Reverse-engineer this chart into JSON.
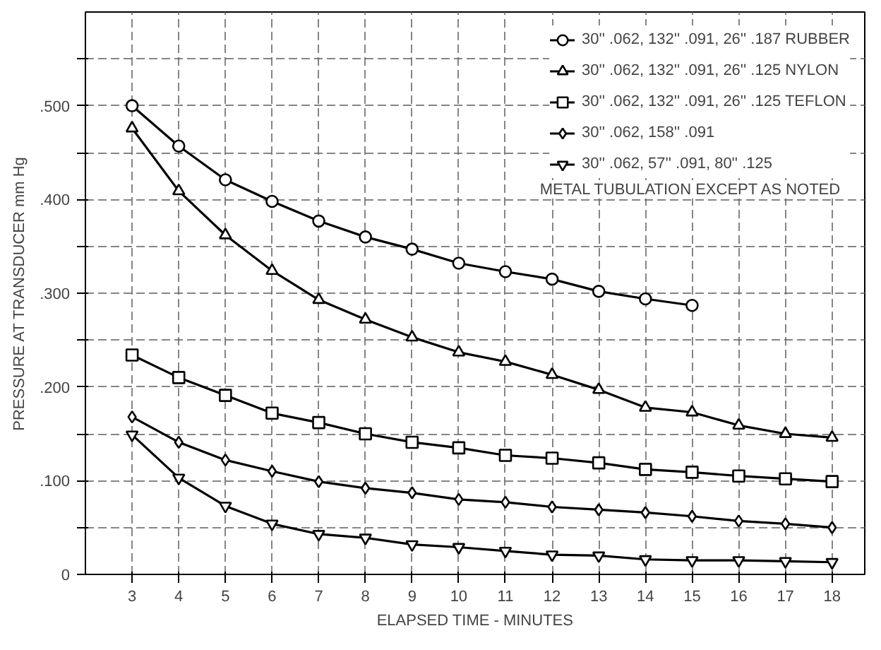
{
  "chart_data": {
    "type": "line",
    "xlabel": "ELAPSED TIME - MINUTES",
    "ylabel": "PRESSURE AT TRANSDUCER mm Hg",
    "x": [
      3,
      4,
      5,
      6,
      7,
      8,
      9,
      10,
      11,
      12,
      13,
      14,
      15,
      16,
      17,
      18
    ],
    "series": [
      {
        "name": "30'' .062, 132'' .091, 26'' .187 RUBBER",
        "color": "#000000",
        "marker": "circle",
        "values": [
          0.5,
          0.457,
          0.421,
          0.398,
          0.377,
          0.36,
          0.347,
          0.332,
          0.323,
          0.315,
          0.302,
          0.294,
          0.287,
          null,
          null,
          null
        ]
      },
      {
        "name": "30'' .062, 132'' .091, 26'' .125 NYLON",
        "color": "#000000",
        "marker": "triangle",
        "values": [
          0.476,
          0.409,
          0.362,
          0.324,
          0.293,
          0.272,
          0.253,
          0.237,
          0.227,
          0.213,
          0.197,
          0.178,
          0.173,
          0.159,
          0.15,
          0.146
        ]
      },
      {
        "name": "30'' .062, 132'' .091, 26'' .125 TEFLON",
        "color": "#000000",
        "marker": "square",
        "values": [
          0.234,
          0.21,
          0.191,
          0.172,
          0.162,
          0.15,
          0.141,
          0.135,
          0.127,
          0.124,
          0.119,
          0.112,
          0.109,
          0.105,
          0.102,
          0.099
        ]
      },
      {
        "name": "30'' .062, 158'' .091",
        "color": "#000000",
        "marker": "diamond",
        "values": [
          0.168,
          0.141,
          0.122,
          0.11,
          0.099,
          0.092,
          0.087,
          0.08,
          0.077,
          0.072,
          0.069,
          0.066,
          0.062,
          0.057,
          0.054,
          0.05
        ]
      },
      {
        "name": "30'' .062, 57'' .091, 80'' .125",
        "color": "#000000",
        "marker": "triangle_down",
        "values": [
          0.149,
          0.103,
          0.073,
          0.054,
          0.043,
          0.039,
          0.032,
          0.029,
          0.025,
          0.021,
          0.02,
          0.016,
          0.015,
          0.015,
          0.014,
          0.013
        ]
      }
    ],
    "annotations": [
      "METAL TUBULATION EXCEPT AS NOTED"
    ],
    "xlim": [
      2,
      18.7
    ],
    "xticks": [
      3,
      4,
      5,
      6,
      7,
      8,
      9,
      10,
      11,
      12,
      13,
      14,
      15,
      16,
      17,
      18
    ],
    "ylim": [
      0,
      0.6
    ],
    "yticks": [
      0,
      {
        "value": 0.05,
        "label": null
      },
      {
        "value": 0.1,
        "label": ".100"
      },
      {
        "value": 0.15,
        "label": null
      },
      {
        "value": 0.2,
        "label": ".200"
      },
      {
        "value": 0.25,
        "label": null
      },
      {
        "value": 0.3,
        "label": ".300"
      },
      {
        "value": 0.35,
        "label": null
      },
      {
        "value": 0.4,
        "label": ".400"
      },
      {
        "value": 0.45,
        "label": null
      },
      {
        "value": 0.5,
        "label": ".500"
      },
      {
        "value": 0.55,
        "label": null
      }
    ],
    "grid": true,
    "legend": "top right",
    "line_style": "solid"
  }
}
